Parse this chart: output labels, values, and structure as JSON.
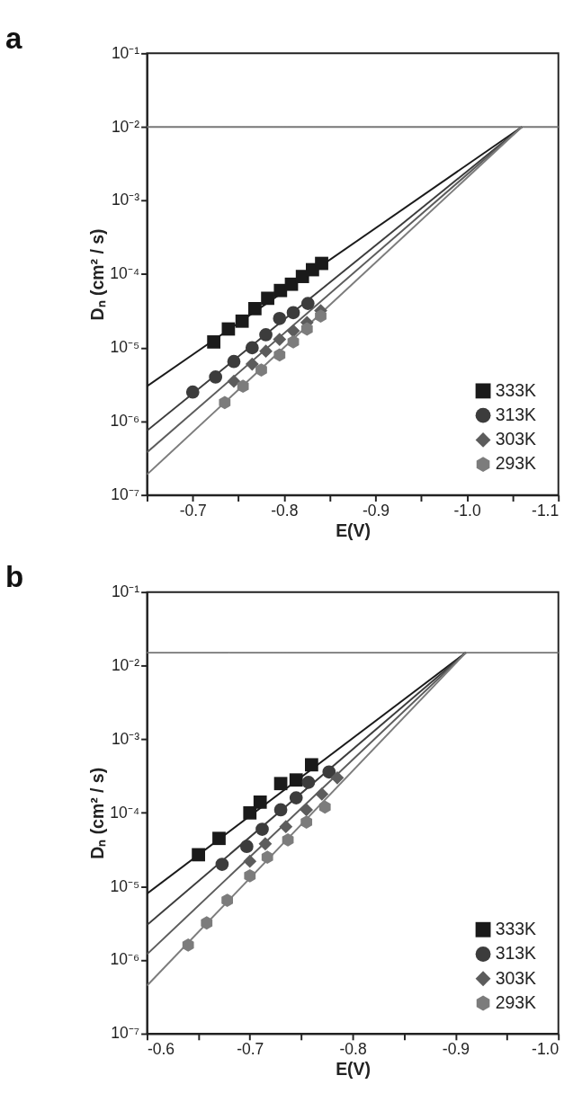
{
  "chart_data": [
    {
      "type": "scatter",
      "title": "a",
      "xlabel": "E(V)",
      "ylabel": "Dₙ (cm² / s)",
      "log": "y",
      "grid": false,
      "legend": "bottom right",
      "xlim": [
        -0.65,
        -1.1
      ],
      "xticks": [
        {
          "value": -0.65,
          "label": null
        },
        -0.7,
        {
          "value": -0.75,
          "label": null
        },
        -0.8,
        {
          "value": -0.85,
          "label": null
        },
        -0.9,
        {
          "value": -0.95,
          "label": null
        },
        {
          "value": -1.0,
          "label": "-1.0"
        },
        {
          "value": -1.05,
          "label": null
        },
        -1.1
      ],
      "ylim": [
        1e-07,
        0.1
      ],
      "yticks": [
        {
          "value": 1e-07,
          "label": "10⁻⁷"
        },
        {
          "value": 1e-06,
          "label": "10⁻⁶"
        },
        {
          "value": 1e-05,
          "label": "10⁻⁵"
        },
        {
          "value": 0.0001,
          "label": "10⁻⁴"
        },
        {
          "value": 0.001,
          "label": "10⁻³"
        },
        {
          "value": 0.01,
          "label": "10⁻²"
        },
        {
          "value": 0.1,
          "label": "10⁻¹"
        }
      ],
      "ref_lines": [
        {
          "axis": "y",
          "value": 0.01,
          "color": "#777777"
        }
      ],
      "series": [
        {
          "name": "333K",
          "type": "scatter",
          "marker": "square",
          "color": "#1a1a1a",
          "x": [
            -0.723,
            -0.739,
            -0.754,
            -0.768,
            -0.782,
            -0.796,
            -0.808,
            -0.82,
            -0.831,
            -0.841
          ],
          "values": [
            1.2e-05,
            1.8e-05,
            2.3e-05,
            3.4e-05,
            4.7e-05,
            6e-05,
            7.3e-05,
            9.3e-05,
            0.000115,
            0.00014
          ]
        },
        {
          "name": "313K",
          "type": "scatter",
          "marker": "circle",
          "color": "#3c3c3c",
          "x": [
            -0.7,
            -0.725,
            -0.745,
            -0.765,
            -0.78,
            -0.795,
            -0.81,
            -0.826
          ],
          "values": [
            2.5e-06,
            4e-06,
            6.5e-06,
            1e-05,
            1.5e-05,
            2.5e-05,
            3e-05,
            4e-05
          ]
        },
        {
          "name": "303K",
          "type": "scatter",
          "marker": "diamond",
          "color": "#5c5c5c",
          "x": [
            -0.745,
            -0.765,
            -0.78,
            -0.795,
            -0.81,
            -0.825,
            -0.84
          ],
          "values": [
            3.5e-06,
            6e-06,
            9e-06,
            1.3e-05,
            1.7e-05,
            2.2e-05,
            3.2e-05
          ]
        },
        {
          "name": "293K",
          "type": "scatter",
          "color": "#7c7c7c",
          "x": [
            -0.735,
            -0.755,
            -0.775,
            -0.795,
            -0.81,
            -0.825,
            -0.84
          ],
          "values": [
            1.8e-06,
            3e-06,
            5e-06,
            8e-06,
            1.2e-05,
            1.8e-05,
            2.7e-05
          ]
        },
        {
          "type": "line",
          "color": "#1a1a1a",
          "x": [
            -0.65,
            -1.06
          ],
          "values": [
            3e-06,
            0.01
          ]
        },
        {
          "type": "line",
          "color": "#3c3c3c",
          "x": [
            -0.65,
            -1.06
          ],
          "values": [
            7.5e-07,
            0.01
          ]
        },
        {
          "type": "line",
          "color": "#5c5c5c",
          "x": [
            -0.65,
            -1.06
          ],
          "values": [
            3.8e-07,
            0.01
          ]
        },
        {
          "type": "line",
          "color": "#7c7c7c",
          "x": [
            -0.65,
            -1.06
          ],
          "values": [
            1.9e-07,
            0.01
          ]
        }
      ]
    },
    {
      "type": "scatter",
      "title": "b",
      "xlabel": "E(V)",
      "ylabel": "Dₙ (cm² / s)",
      "log": "y",
      "grid": false,
      "legend": "bottom right",
      "xlim": [
        -0.6,
        -1.0
      ],
      "xticks": [
        -0.6,
        {
          "value": -0.65,
          "label": null
        },
        -0.7,
        {
          "value": -0.75,
          "label": null
        },
        -0.8,
        {
          "value": -0.85,
          "label": null
        },
        -0.9,
        {
          "value": -0.95,
          "label": null
        },
        {
          "value": -1.0,
          "label": "-1.0"
        }
      ],
      "ylim": [
        1e-07,
        0.1
      ],
      "yticks": [
        {
          "value": 1e-07,
          "label": "10⁻⁷"
        },
        {
          "value": 1e-06,
          "label": "10⁻⁶"
        },
        {
          "value": 1e-05,
          "label": "10⁻⁵"
        },
        {
          "value": 0.0001,
          "label": "10⁻⁴"
        },
        {
          "value": 0.001,
          "label": "10⁻³"
        },
        {
          "value": 0.01,
          "label": "10⁻²"
        },
        {
          "value": 0.1,
          "label": "10⁻¹"
        }
      ],
      "ref_lines": [
        {
          "axis": "y",
          "value": 0.015,
          "color": "#777777"
        }
      ],
      "series": [
        {
          "name": "333K",
          "type": "scatter",
          "marker": "square",
          "color": "#1a1a1a",
          "x": [
            -0.65,
            -0.67,
            -0.7,
            -0.71,
            -0.73,
            -0.745,
            -0.76
          ],
          "values": [
            2.7e-05,
            4.5e-05,
            0.0001,
            0.00014,
            0.00025,
            0.00028,
            0.00045
          ]
        },
        {
          "name": "313K",
          "type": "scatter",
          "marker": "circle",
          "color": "#3c3c3c",
          "x": [
            -0.673,
            -0.697,
            -0.712,
            -0.73,
            -0.745,
            -0.757,
            -0.777
          ],
          "values": [
            2e-05,
            3.5e-05,
            6e-05,
            0.00011,
            0.00016,
            0.00026,
            0.00036
          ]
        },
        {
          "name": "303K",
          "type": "scatter",
          "marker": "diamond",
          "color": "#5c5c5c",
          "x": [
            -0.7,
            -0.715,
            -0.735,
            -0.755,
            -0.77,
            -0.785
          ],
          "values": [
            2.2e-05,
            3.8e-05,
            6.5e-05,
            0.00011,
            0.00018,
            0.0003
          ]
        },
        {
          "name": "293K",
          "type": "scatter",
          "color": "#7c7c7c",
          "x": [
            -0.64,
            -0.658,
            -0.678,
            -0.7,
            -0.717,
            -0.737,
            -0.755,
            -0.773
          ],
          "values": [
            1.6e-06,
            3.2e-06,
            6.5e-06,
            1.4e-05,
            2.5e-05,
            4.3e-05,
            7.5e-05,
            0.00012
          ]
        },
        {
          "type": "line",
          "color": "#1a1a1a",
          "x": [
            -0.6,
            -0.91
          ],
          "values": [
            8e-06,
            0.015
          ]
        },
        {
          "type": "line",
          "color": "#3c3c3c",
          "x": [
            -0.6,
            -0.91
          ],
          "values": [
            3e-06,
            0.015
          ]
        },
        {
          "type": "line",
          "color": "#5c5c5c",
          "x": [
            -0.6,
            -0.91
          ],
          "values": [
            1.2e-06,
            0.015
          ]
        },
        {
          "type": "line",
          "color": "#7c7c7c",
          "x": [
            -0.6,
            -0.91
          ],
          "values": [
            4.5e-07,
            0.015
          ]
        }
      ]
    }
  ]
}
